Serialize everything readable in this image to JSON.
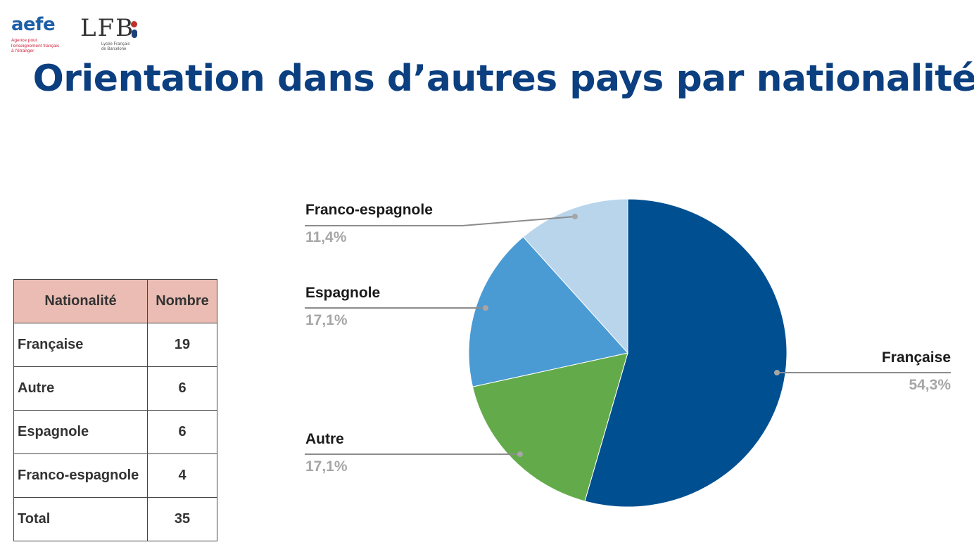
{
  "logos": {
    "aefe": {
      "name": "aefe",
      "tagline": [
        "Agence pour",
        "l'enseignement français",
        "à l'étranger"
      ]
    },
    "lfb": {
      "name": "LFB",
      "tagline": [
        "Lycée Français",
        "de Barcelone"
      ]
    }
  },
  "title": "Orientation dans d’autres pays par nationalité",
  "table": {
    "headers": [
      "Nationalité",
      "Nombre"
    ],
    "header_bg": "#eabcb3",
    "rows": [
      {
        "label": "Française",
        "value": "19"
      },
      {
        "label": "Autre",
        "value": "6"
      },
      {
        "label": "Espagnole",
        "value": "6"
      },
      {
        "label": "Franco-espagnole",
        "value": "4"
      },
      {
        "label": "Total",
        "value": "35"
      }
    ]
  },
  "chart_data": {
    "type": "pie",
    "start": "12 o'clock",
    "direction": "clockwise",
    "slices": [
      {
        "label": "Française",
        "value": 54.3,
        "pct_label": "54,3%",
        "color": "#004f91"
      },
      {
        "label": "Autre",
        "value": 17.1,
        "pct_label": "17,1%",
        "color": "#63ab4a"
      },
      {
        "label": "Espagnole",
        "value": 17.1,
        "pct_label": "17,1%",
        "color": "#4a9ad4"
      },
      {
        "label": "Franco-espagnole",
        "value": 11.4,
        "pct_label": "11,4%",
        "color": "#b9d5ec"
      }
    ]
  }
}
